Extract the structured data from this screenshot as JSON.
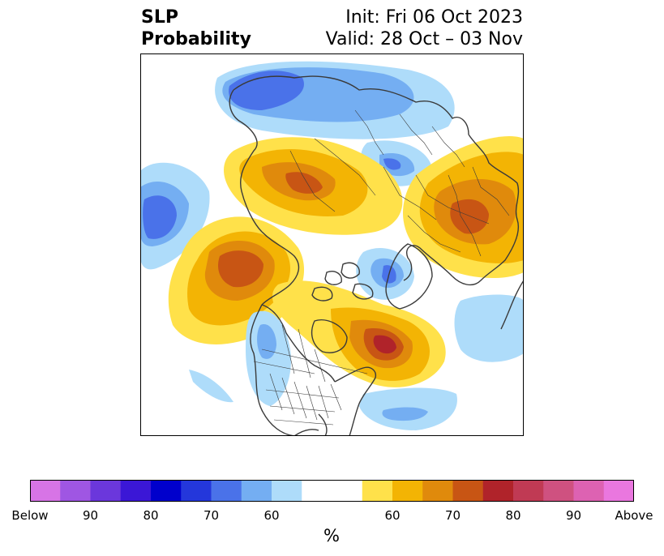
{
  "title": {
    "left_line1": "SLP",
    "left_line2": "Probability",
    "right_line1": "Init: Fri 06 Oct 2023",
    "right_line2": "Valid: 28 Oct – 03 Nov"
  },
  "colorbar": {
    "colors": [
      "#d774e6",
      "#9f56e3",
      "#6b37dc",
      "#3b17d6",
      "#0000cc",
      "#2437db",
      "#4a72e9",
      "#74aef2",
      "#aedcfa",
      "#ffffff",
      "#ffe14a",
      "#f3b404",
      "#e08a0c",
      "#c85514",
      "#b0232a",
      "#c03a54",
      "#cf5180",
      "#dd62b2",
      "#ea77df"
    ],
    "tick_labels": [
      "Below",
      "90",
      "80",
      "70",
      "60",
      "60",
      "70",
      "80",
      "90",
      "Above"
    ],
    "units": "%"
  },
  "map": {
    "projection": "north-polar-stereographic",
    "features": [
      "coastlines",
      "country-borders",
      "us-state-borders",
      "canadian-provinces"
    ],
    "anomalies": [
      {
        "region": "Northern Europe / Scandinavia",
        "category": "below",
        "max_probability": 70
      },
      {
        "region": "Western Russia",
        "category": "below",
        "max_probability": 70
      },
      {
        "region": "North Atlantic",
        "category": "below",
        "max_probability": 70
      },
      {
        "region": "Siberia",
        "category": "above",
        "max_probability": 75
      },
      {
        "region": "Aleutians / Bering Sea",
        "category": "above",
        "max_probability": 75
      },
      {
        "region": "Eastern Europe / Mediterranean",
        "category": "above",
        "max_probability": 75
      },
      {
        "region": "Eastern Canada / Hudson Bay",
        "category": "above",
        "max_probability": 80
      },
      {
        "region": "Canadian Arctic Archipelago",
        "category": "below",
        "max_probability": 70
      },
      {
        "region": "Central Pacific",
        "category": "below",
        "max_probability": 60
      },
      {
        "region": "Western United States",
        "category": "below",
        "max_probability": 60
      }
    ]
  }
}
